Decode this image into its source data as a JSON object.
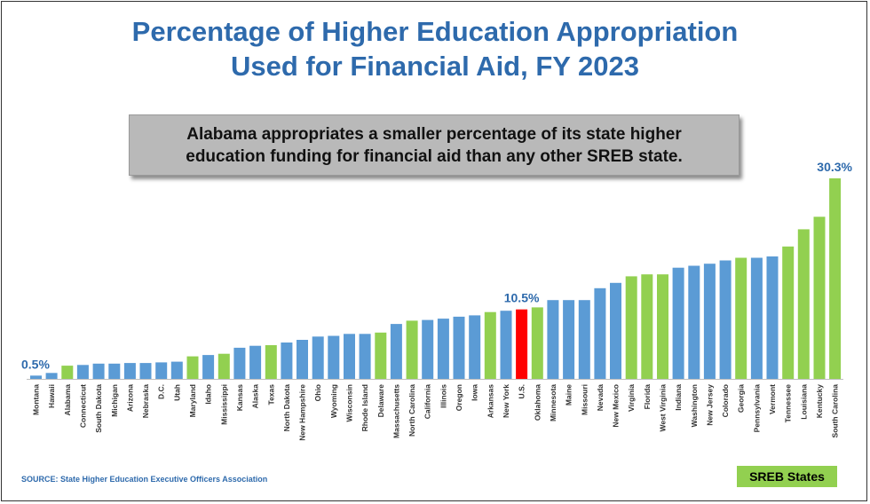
{
  "title_line1": "Percentage of Higher Education Appropriation",
  "title_line2": "Used for Financial Aid, FY 2023",
  "callout": "Alabama appropriates a smaller percentage of its state higher education funding for financial aid than any other SREB state.",
  "source": "SOURCE: State Higher Education Executive Officers Association",
  "legend_label": "SREB States",
  "colors": {
    "title": "#2e6aac",
    "non_sreb": "#5b9bd5",
    "sreb": "#92d050",
    "us": "#ff0000"
  },
  "chart_data": {
    "type": "bar",
    "title": "Percentage of Higher Education Appropriation Used for Financial Aid, FY 2023",
    "xlabel": "",
    "ylabel": "",
    "ylim": [
      0,
      31
    ],
    "categories": [
      "Montana",
      "Hawaii",
      "Alabama",
      "Connecticut",
      "South Dakota",
      "Michigan",
      "Arizona",
      "Nebraska",
      "D.C.",
      "Utah",
      "Maryland",
      "Idaho",
      "Mississippi",
      "Kansas",
      "Alaska",
      "Texas",
      "North Dakota",
      "New Hampshire",
      "Ohio",
      "Wyoming",
      "Wisconsin",
      "Rhode Island",
      "Delaware",
      "Massachusetts",
      "North Carolina",
      "California",
      "Illinois",
      "Oregon",
      "Iowa",
      "Arkansas",
      "New York",
      "U.S.",
      "Oklahoma",
      "Minnesota",
      "Maine",
      "Missouri",
      "Nevada",
      "New Mexico",
      "Virginia",
      "Florida",
      "West Virginia",
      "Indiana",
      "Washington",
      "New Jersey",
      "Colorado",
      "Georgia",
      "Pennsylvania",
      "Vermont",
      "Tennessee",
      "Louisiana",
      "Kentucky",
      "South Carolina"
    ],
    "values": [
      0.5,
      0.9,
      2.0,
      2.1,
      2.3,
      2.3,
      2.4,
      2.4,
      2.5,
      2.6,
      3.4,
      3.6,
      3.8,
      4.7,
      5.0,
      5.1,
      5.5,
      5.9,
      6.4,
      6.5,
      6.8,
      6.8,
      7.0,
      8.3,
      8.8,
      8.9,
      9.1,
      9.4,
      9.6,
      10.1,
      10.3,
      10.5,
      10.8,
      11.9,
      11.9,
      11.9,
      13.7,
      14.5,
      15.5,
      15.8,
      15.8,
      16.8,
      17.1,
      17.4,
      17.9,
      18.3,
      18.3,
      18.5,
      20.0,
      22.6,
      24.5,
      30.3
    ],
    "groups": [
      "other",
      "other",
      "SREB",
      "other",
      "other",
      "other",
      "other",
      "other",
      "other",
      "other",
      "SREB",
      "other",
      "SREB",
      "other",
      "other",
      "SREB",
      "other",
      "other",
      "other",
      "other",
      "other",
      "other",
      "SREB",
      "other",
      "SREB",
      "other",
      "other",
      "other",
      "other",
      "SREB",
      "other",
      "US",
      "SREB",
      "other",
      "other",
      "other",
      "other",
      "other",
      "SREB",
      "SREB",
      "SREB",
      "other",
      "other",
      "other",
      "other",
      "SREB",
      "other",
      "other",
      "SREB",
      "SREB",
      "SREB",
      "SREB"
    ],
    "data_labels": [
      {
        "category": "Montana",
        "text": "0.5%"
      },
      {
        "category": "U.S.",
        "text": "10.5%"
      },
      {
        "category": "South Carolina",
        "text": "30.3%"
      }
    ],
    "legend": [
      {
        "name": "SREB States",
        "color": "#92d050"
      }
    ]
  }
}
